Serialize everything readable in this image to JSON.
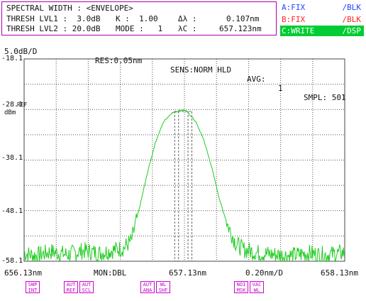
{
  "info": {
    "line1": "SPECTRAL WIDTH : <ENVELOPE>",
    "line2_a": "THRESH LVL1 :  3.0dB",
    "line2_k": "K :  1.00",
    "line2_dl_label": "Δλ :",
    "line2_dl_value": "0.107nm",
    "line3_a": "THRESH LVL2 : 20.0dB",
    "line3_mode": "MODE :   1",
    "line3_lc_label": "λC :",
    "line3_lc_value": "657.123nm"
  },
  "traces": [
    {
      "name": "A:FIX",
      "mode": "/BLK",
      "color": "#2244ff",
      "active": false
    },
    {
      "name": "B:FIX",
      "mode": "/BLK",
      "color": "#ff2222",
      "active": false
    },
    {
      "name": "C:WRITE",
      "mode": "/DSP",
      "color": "#ffffff",
      "bg": "#00cc33",
      "active": true
    }
  ],
  "status": {
    "scale": "5.0dB/D",
    "res": "RES:0.05nm",
    "sens": "SENS:NORM HLD",
    "avg_label": "AVG:",
    "avg_value": "1",
    "smpl": "SMPL: 501"
  },
  "yaxis": {
    "ticks": [
      "-18.1",
      "-28.1",
      "-38.1",
      "-48.1",
      "-58.1"
    ],
    "ref": "REF",
    "unit": "dBm"
  },
  "xaxis": {
    "start": "656.13nm",
    "mon": "MON:DBL",
    "center": "657.13nm",
    "span": "0.20nm/D",
    "stop": "658.13nm"
  },
  "softkeys": [
    {
      "l1": "SWP",
      "l2": "INT"
    },
    {
      "l1": "AUT",
      "l2": "REF"
    },
    {
      "l1": "AUT",
      "l2": "SCL"
    },
    {
      "l1": "AUT",
      "l2": "ANA"
    },
    {
      "l1": "WL",
      "l2": "SHF"
    },
    {
      "l1": "NOI",
      "l2": "MSK"
    },
    {
      "l1": "VAC",
      "l2": "WL"
    }
  ],
  "chart_data": {
    "type": "line",
    "xlim": [
      656.13,
      658.13
    ],
    "ylim": [
      -58.1,
      -18.1
    ],
    "x_divisions": 10,
    "y_divisions": 8,
    "grid": true,
    "series_color": "#22cc22",
    "peak": {
      "x": 657.123,
      "y": -28.2
    },
    "spectral_width_nm": 0.107,
    "x": [
      656.13,
      656.2,
      656.3,
      656.4,
      656.5,
      656.6,
      656.7,
      656.75,
      656.8,
      656.85,
      656.9,
      656.95,
      657.0,
      657.05,
      657.1,
      657.123,
      657.15,
      657.2,
      657.25,
      657.3,
      657.35,
      657.4,
      657.45,
      657.5,
      657.6,
      657.7,
      657.8,
      657.9,
      658.0,
      658.13
    ],
    "y": [
      -56.5,
      -57.0,
      -56.2,
      -56.8,
      -56.0,
      -56.5,
      -55.8,
      -55.5,
      -54.0,
      -47.5,
      -40.5,
      -34.5,
      -30.5,
      -28.8,
      -28.3,
      -28.2,
      -28.6,
      -30.5,
      -34.0,
      -39.5,
      -46.0,
      -51.0,
      -54.5,
      -55.8,
      -56.5,
      -56.8,
      -57.0,
      -56.5,
      -56.9,
      -56.4
    ]
  }
}
